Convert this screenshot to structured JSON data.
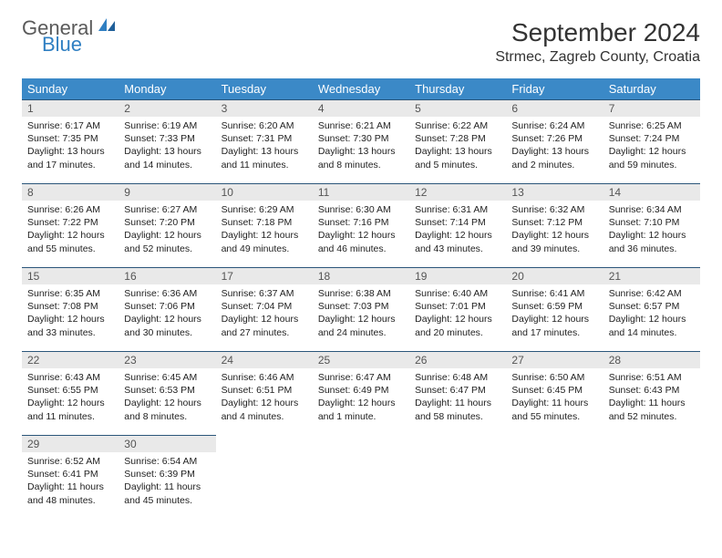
{
  "logo": {
    "text1": "General",
    "text2": "Blue"
  },
  "title": "September 2024",
  "location": "Strmec, Zagreb County, Croatia",
  "colors": {
    "header_bg": "#3b89c7",
    "header_text": "#ffffff",
    "daynum_bg": "#e9e9e9",
    "daynum_border": "#2b567a",
    "logo_gray": "#5a5a5a",
    "logo_blue": "#2f7fc2",
    "body_text": "#222222",
    "page_bg": "#ffffff"
  },
  "weekdays": [
    "Sunday",
    "Monday",
    "Tuesday",
    "Wednesday",
    "Thursday",
    "Friday",
    "Saturday"
  ],
  "weeks": [
    [
      {
        "n": "1",
        "sr": "6:17 AM",
        "ss": "7:35 PM",
        "dl": "13 hours and 17 minutes."
      },
      {
        "n": "2",
        "sr": "6:19 AM",
        "ss": "7:33 PM",
        "dl": "13 hours and 14 minutes."
      },
      {
        "n": "3",
        "sr": "6:20 AM",
        "ss": "7:31 PM",
        "dl": "13 hours and 11 minutes."
      },
      {
        "n": "4",
        "sr": "6:21 AM",
        "ss": "7:30 PM",
        "dl": "13 hours and 8 minutes."
      },
      {
        "n": "5",
        "sr": "6:22 AM",
        "ss": "7:28 PM",
        "dl": "13 hours and 5 minutes."
      },
      {
        "n": "6",
        "sr": "6:24 AM",
        "ss": "7:26 PM",
        "dl": "13 hours and 2 minutes."
      },
      {
        "n": "7",
        "sr": "6:25 AM",
        "ss": "7:24 PM",
        "dl": "12 hours and 59 minutes."
      }
    ],
    [
      {
        "n": "8",
        "sr": "6:26 AM",
        "ss": "7:22 PM",
        "dl": "12 hours and 55 minutes."
      },
      {
        "n": "9",
        "sr": "6:27 AM",
        "ss": "7:20 PM",
        "dl": "12 hours and 52 minutes."
      },
      {
        "n": "10",
        "sr": "6:29 AM",
        "ss": "7:18 PM",
        "dl": "12 hours and 49 minutes."
      },
      {
        "n": "11",
        "sr": "6:30 AM",
        "ss": "7:16 PM",
        "dl": "12 hours and 46 minutes."
      },
      {
        "n": "12",
        "sr": "6:31 AM",
        "ss": "7:14 PM",
        "dl": "12 hours and 43 minutes."
      },
      {
        "n": "13",
        "sr": "6:32 AM",
        "ss": "7:12 PM",
        "dl": "12 hours and 39 minutes."
      },
      {
        "n": "14",
        "sr": "6:34 AM",
        "ss": "7:10 PM",
        "dl": "12 hours and 36 minutes."
      }
    ],
    [
      {
        "n": "15",
        "sr": "6:35 AM",
        "ss": "7:08 PM",
        "dl": "12 hours and 33 minutes."
      },
      {
        "n": "16",
        "sr": "6:36 AM",
        "ss": "7:06 PM",
        "dl": "12 hours and 30 minutes."
      },
      {
        "n": "17",
        "sr": "6:37 AM",
        "ss": "7:04 PM",
        "dl": "12 hours and 27 minutes."
      },
      {
        "n": "18",
        "sr": "6:38 AM",
        "ss": "7:03 PM",
        "dl": "12 hours and 24 minutes."
      },
      {
        "n": "19",
        "sr": "6:40 AM",
        "ss": "7:01 PM",
        "dl": "12 hours and 20 minutes."
      },
      {
        "n": "20",
        "sr": "6:41 AM",
        "ss": "6:59 PM",
        "dl": "12 hours and 17 minutes."
      },
      {
        "n": "21",
        "sr": "6:42 AM",
        "ss": "6:57 PM",
        "dl": "12 hours and 14 minutes."
      }
    ],
    [
      {
        "n": "22",
        "sr": "6:43 AM",
        "ss": "6:55 PM",
        "dl": "12 hours and 11 minutes."
      },
      {
        "n": "23",
        "sr": "6:45 AM",
        "ss": "6:53 PM",
        "dl": "12 hours and 8 minutes."
      },
      {
        "n": "24",
        "sr": "6:46 AM",
        "ss": "6:51 PM",
        "dl": "12 hours and 4 minutes."
      },
      {
        "n": "25",
        "sr": "6:47 AM",
        "ss": "6:49 PM",
        "dl": "12 hours and 1 minute."
      },
      {
        "n": "26",
        "sr": "6:48 AM",
        "ss": "6:47 PM",
        "dl": "11 hours and 58 minutes."
      },
      {
        "n": "27",
        "sr": "6:50 AM",
        "ss": "6:45 PM",
        "dl": "11 hours and 55 minutes."
      },
      {
        "n": "28",
        "sr": "6:51 AM",
        "ss": "6:43 PM",
        "dl": "11 hours and 52 minutes."
      }
    ],
    [
      {
        "n": "29",
        "sr": "6:52 AM",
        "ss": "6:41 PM",
        "dl": "11 hours and 48 minutes."
      },
      {
        "n": "30",
        "sr": "6:54 AM",
        "ss": "6:39 PM",
        "dl": "11 hours and 45 minutes."
      },
      null,
      null,
      null,
      null,
      null
    ]
  ],
  "labels": {
    "sunrise": "Sunrise:",
    "sunset": "Sunset:",
    "daylight": "Daylight:"
  }
}
